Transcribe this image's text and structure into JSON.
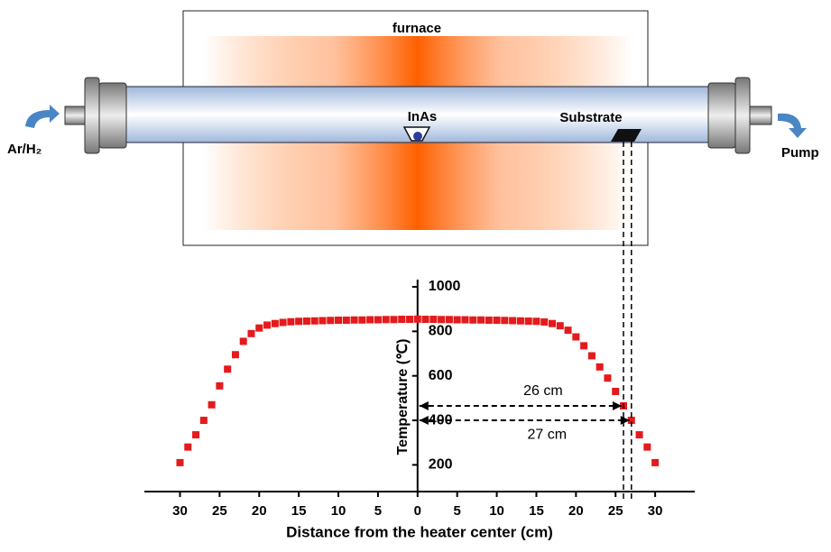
{
  "diagram": {
    "furnace": "furnace",
    "inlet": "Ar/H₂",
    "outlet": "Pump",
    "source": "InAs",
    "substrate": "Substrate"
  },
  "chart_data": {
    "type": "scatter",
    "x_label": "Distance from the heater center (cm)",
    "y_label": "Temperature (℃)",
    "color": "#e41a1c",
    "x": [
      -30,
      -29,
      -28,
      -27,
      -26,
      -25,
      -24,
      -23,
      -22,
      -21,
      -20,
      -19,
      -18,
      -17,
      -16,
      -15,
      -14,
      -13,
      -12,
      -11,
      -10,
      -9,
      -8,
      -7,
      -6,
      -5,
      -4,
      -3,
      -2,
      -1,
      0,
      1,
      2,
      3,
      4,
      5,
      6,
      7,
      8,
      9,
      10,
      11,
      12,
      13,
      14,
      15,
      16,
      17,
      18,
      19,
      20,
      21,
      22,
      23,
      24,
      25,
      26,
      27,
      28,
      29,
      30
    ],
    "values": [
      210,
      280,
      335,
      400,
      470,
      555,
      630,
      695,
      755,
      790,
      815,
      828,
      835,
      840,
      843,
      845,
      846,
      847,
      848,
      849,
      850,
      850,
      851,
      851,
      852,
      852,
      853,
      853,
      854,
      854,
      855,
      854,
      854,
      853,
      853,
      852,
      852,
      851,
      851,
      850,
      850,
      849,
      848,
      847,
      846,
      845,
      842,
      835,
      825,
      805,
      775,
      735,
      690,
      640,
      590,
      530,
      465,
      400,
      335,
      280,
      210
    ],
    "xlim": [
      -34.5,
      35
    ],
    "ylim": [
      80,
      1000
    ],
    "xticks": [
      {
        "value": -30,
        "label": "30"
      },
      {
        "value": -25,
        "label": "25"
      },
      {
        "value": -20,
        "label": "20"
      },
      {
        "value": -15,
        "label": "15"
      },
      {
        "value": -10,
        "label": "10"
      },
      {
        "value": -5,
        "label": "5"
      },
      0,
      5,
      10,
      15,
      20,
      25,
      30
    ],
    "yticks": [
      200,
      400,
      600,
      800,
      1000
    ],
    "annotations": [
      {
        "text": "26 cm",
        "x": 26,
        "y": 465
      },
      {
        "text": "27 cm",
        "x": 27,
        "y": 400
      }
    ]
  }
}
